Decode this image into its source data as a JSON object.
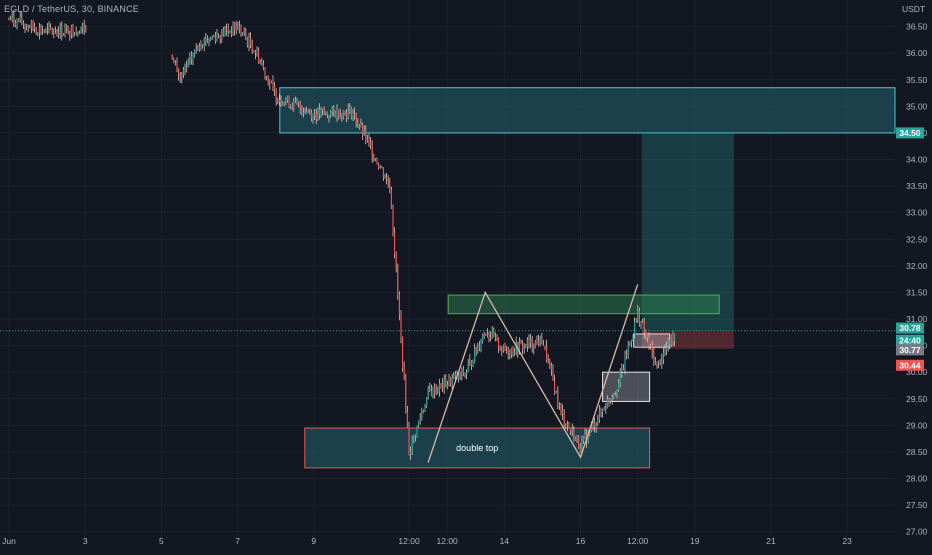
{
  "header": {
    "symbol_title": "EGLD / TetherUS, 30, BINANCE",
    "currency": "USDT"
  },
  "price_badges": {
    "target": "34.50",
    "current": "30.78",
    "countdown": "24:40",
    "entry": "30.77",
    "stop": "30.44"
  },
  "annotations": {
    "double_top": "double top"
  },
  "colors": {
    "background": "#131722",
    "up": "#26a69a",
    "down": "#ef5350",
    "wick": "#e0c3b5",
    "zone_fill": "#1f4f5a",
    "zone_border": "#3fd0cf",
    "pattern_line": "#d7b9a6",
    "profit": "#26a69a",
    "loss": "#ef5350",
    "axis_text": "#b2b5be",
    "grid": "#1e222d"
  },
  "chart_data": {
    "type": "candlestick",
    "title": "EGLD / TetherUS, 30, BINANCE",
    "ylim": [
      26.9,
      37.0
    ],
    "y_ticks": [
      "27.00",
      "27.50",
      "28.00",
      "28.50",
      "29.00",
      "29.50",
      "30.00",
      "30.50",
      "31.00",
      "31.50",
      "32.00",
      "32.50",
      "33.00",
      "33.50",
      "34.00",
      "34.50",
      "35.00",
      "35.50",
      "36.00",
      "36.50"
    ],
    "x_ticks": [
      "Jun",
      "3",
      "5",
      "7",
      "9",
      "12:00",
      "12:00",
      "14",
      "16",
      "12:00",
      "19",
      "21",
      "23"
    ],
    "grid": true,
    "price_path": [
      {
        "t": "Jun 1",
        "price": 36.65
      },
      {
        "t": "Jun 2",
        "price": 36.4
      },
      {
        "t": "Jun 5",
        "price": 36.6
      },
      {
        "t": "Jun 5 12:00",
        "price": 35.5
      },
      {
        "t": "Jun 6",
        "price": 36.2
      },
      {
        "t": "Jun 7",
        "price": 36.5
      },
      {
        "t": "Jun 7 12:00",
        "price": 36.0
      },
      {
        "t": "Jun 8",
        "price": 35.2
      },
      {
        "t": "Jun 9",
        "price": 34.85
      },
      {
        "t": "Jun 10",
        "price": 34.9
      },
      {
        "t": "Jun 11",
        "price": 33.5
      },
      {
        "t": "Jun 11 12:00",
        "price": 28.5
      },
      {
        "t": "Jun 12",
        "price": 29.6
      },
      {
        "t": "Jun 13",
        "price": 30.0
      },
      {
        "t": "Jun 13 12:00",
        "price": 30.8
      },
      {
        "t": "Jun 14",
        "price": 30.4
      },
      {
        "t": "Jun 15",
        "price": 30.6
      },
      {
        "t": "Jun 15 12:00",
        "price": 29.2
      },
      {
        "t": "Jun 16",
        "price": 28.6
      },
      {
        "t": "Jun 17",
        "price": 29.8
      },
      {
        "t": "Jun 17 12:00",
        "price": 31.1
      },
      {
        "t": "Jun 18",
        "price": 30.1
      },
      {
        "t": "Jun 18 12:00",
        "price": 30.78
      }
    ],
    "zones": [
      {
        "label": "",
        "from": 34.5,
        "to": 35.35
      },
      {
        "label": "double top",
        "from": 28.2,
        "to": 28.95
      }
    ],
    "double_top_pattern": [
      {
        "t": "Jun 12",
        "price": 28.3
      },
      {
        "t": "Jun 13 12:00",
        "price": 31.5
      },
      {
        "t": "Jun 16",
        "price": 28.4
      },
      {
        "t": "Jun 17 12:00",
        "price": 31.65
      }
    ],
    "long_position": {
      "entry": 30.77,
      "target": 34.5,
      "stop": 30.44
    },
    "last_price": 30.78
  }
}
